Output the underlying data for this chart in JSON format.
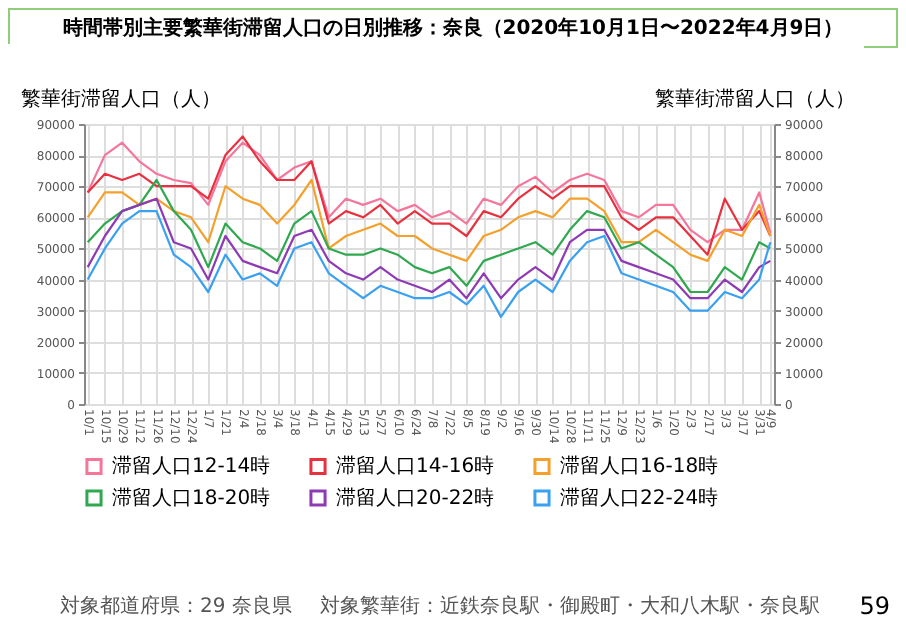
{
  "chart_data": {
    "type": "line",
    "title": "時間帯別主要繁華街滞留人口の日別推移：奈良（2020年10月1日〜2022年4月9日）",
    "ylabel": "繁華街滞留人口（人）",
    "y2label": "繁華街滞留人口（人）",
    "x": [
      "2020-10-01",
      "2020-10-15",
      "2020-10-29",
      "2020-11-12",
      "2020-11-26",
      "2020-12-10",
      "2020-12-24",
      "2021-01-07",
      "2021-01-21",
      "2021-02-04",
      "2021-02-18",
      "2021-03-04",
      "2021-03-18",
      "2021-04-01",
      "2021-04-15",
      "2021-04-29",
      "2021-05-13",
      "2021-05-27",
      "2021-06-10",
      "2021-06-24",
      "2021-07-08",
      "2021-07-22",
      "2021-08-05",
      "2021-08-19",
      "2021-09-02",
      "2021-09-16",
      "2021-09-30",
      "2021-10-14",
      "2021-10-28",
      "2021-11-11",
      "2021-11-25",
      "2021-12-09",
      "2021-12-23",
      "2022-01-06",
      "2022-01-20",
      "2022-02-03",
      "2022-02-17",
      "2022-03-03",
      "2022-03-17",
      "2022-03-31",
      "2022-04-09"
    ],
    "series": [
      {
        "name": "滞留人口12-14時",
        "color": "#f5759b",
        "values": [
          68000,
          80000,
          84000,
          78000,
          74000,
          72000,
          71000,
          64000,
          78000,
          84000,
          80000,
          72000,
          76000,
          78000,
          60000,
          66000,
          64000,
          66000,
          62000,
          64000,
          60000,
          62000,
          58000,
          66000,
          64000,
          70000,
          73000,
          68000,
          72000,
          74000,
          72000,
          62000,
          60000,
          64000,
          64000,
          56000,
          52000,
          56000,
          56000,
          68000,
          55000
        ]
      },
      {
        "name": "滞留人口14-16時",
        "color": "#e8303f",
        "values": [
          68000,
          74000,
          72000,
          74000,
          70000,
          70000,
          70000,
          66000,
          80000,
          86000,
          78000,
          72000,
          72000,
          78000,
          58000,
          62000,
          60000,
          64000,
          58000,
          62000,
          58000,
          58000,
          54000,
          62000,
          60000,
          66000,
          70000,
          66000,
          70000,
          70000,
          70000,
          60000,
          56000,
          60000,
          60000,
          54000,
          48000,
          66000,
          56000,
          62000,
          54000
        ]
      },
      {
        "name": "滞留人口16-18時",
        "color": "#f5a02a",
        "values": [
          60000,
          68000,
          68000,
          64000,
          66000,
          62000,
          60000,
          52000,
          70000,
          66000,
          64000,
          58000,
          64000,
          72000,
          50000,
          54000,
          56000,
          58000,
          54000,
          54000,
          50000,
          48000,
          46000,
          54000,
          56000,
          60000,
          62000,
          60000,
          66000,
          66000,
          62000,
          52000,
          52000,
          56000,
          52000,
          48000,
          46000,
          56000,
          54000,
          64000,
          54000
        ]
      },
      {
        "name": "滞留人口18-20時",
        "color": "#2fa84f",
        "values": [
          52000,
          58000,
          62000,
          64000,
          72000,
          62000,
          56000,
          44000,
          58000,
          52000,
          50000,
          46000,
          58000,
          62000,
          50000,
          48000,
          48000,
          50000,
          48000,
          44000,
          42000,
          44000,
          38000,
          46000,
          48000,
          50000,
          52000,
          48000,
          56000,
          62000,
          60000,
          50000,
          52000,
          48000,
          44000,
          36000,
          36000,
          44000,
          40000,
          52000,
          50000
        ]
      },
      {
        "name": "滞留人口20-22時",
        "color": "#8e3ab5",
        "values": [
          44000,
          54000,
          62000,
          64000,
          66000,
          52000,
          50000,
          40000,
          54000,
          46000,
          44000,
          42000,
          54000,
          56000,
          46000,
          42000,
          40000,
          44000,
          40000,
          38000,
          36000,
          40000,
          34000,
          42000,
          34000,
          40000,
          44000,
          40000,
          52000,
          56000,
          56000,
          46000,
          44000,
          42000,
          40000,
          34000,
          34000,
          40000,
          36000,
          44000,
          46000
        ]
      },
      {
        "name": "滞留人口22-24時",
        "color": "#3aa0f0",
        "values": [
          40000,
          50000,
          58000,
          62000,
          62000,
          48000,
          44000,
          36000,
          48000,
          40000,
          42000,
          38000,
          50000,
          52000,
          42000,
          38000,
          34000,
          38000,
          36000,
          34000,
          34000,
          36000,
          32000,
          38000,
          28000,
          36000,
          40000,
          36000,
          46000,
          52000,
          54000,
          42000,
          40000,
          38000,
          36000,
          30000,
          30000,
          36000,
          34000,
          40000,
          52000
        ]
      }
    ],
    "xlim": [
      "2020-09-28",
      "2022-04-12"
    ],
    "xticks": [
      {
        "value": "2020-10-01",
        "label": "10/1"
      },
      {
        "value": "2020-10-15",
        "label": "10/15"
      },
      {
        "value": "2020-10-29",
        "label": "10/29"
      },
      {
        "value": "2020-11-12",
        "label": "11/12"
      },
      {
        "value": "2020-11-26",
        "label": "11/26"
      },
      {
        "value": "2020-12-10",
        "label": "12/10"
      },
      {
        "value": "2020-12-24",
        "label": "12/24"
      },
      {
        "value": "2021-01-07",
        "label": "1/7"
      },
      {
        "value": "2021-01-21",
        "label": "1/21"
      },
      {
        "value": "2021-02-04",
        "label": "2/4"
      },
      {
        "value": "2021-02-18",
        "label": "2/18"
      },
      {
        "value": "2021-03-04",
        "label": "3/4"
      },
      {
        "value": "2021-03-18",
        "label": "3/18"
      },
      {
        "value": "2021-04-01",
        "label": "4/1"
      },
      {
        "value": "2021-04-15",
        "label": "4/15"
      },
      {
        "value": "2021-04-29",
        "label": "4/29"
      },
      {
        "value": "2021-05-13",
        "label": "5/13"
      },
      {
        "value": "2021-05-27",
        "label": "5/27"
      },
      {
        "value": "2021-06-10",
        "label": "6/10"
      },
      {
        "value": "2021-06-24",
        "label": "6/24"
      },
      {
        "value": "2021-07-08",
        "label": "7/8"
      },
      {
        "value": "2021-07-22",
        "label": "7/22"
      },
      {
        "value": "2021-08-05",
        "label": "8/5"
      },
      {
        "value": "2021-08-19",
        "label": "8/19"
      },
      {
        "value": "2021-09-02",
        "label": "9/2"
      },
      {
        "value": "2021-09-16",
        "label": "9/16"
      },
      {
        "value": "2021-09-30",
        "label": "9/30"
      },
      {
        "value": "2021-10-14",
        "label": "10/14"
      },
      {
        "value": "2021-10-28",
        "label": "10/28"
      },
      {
        "value": "2021-11-11",
        "label": "11/11"
      },
      {
        "value": "2021-11-25",
        "label": "11/25"
      },
      {
        "value": "2021-12-09",
        "label": "12/9"
      },
      {
        "value": "2021-12-23",
        "label": "12/23"
      },
      {
        "value": "2022-01-06",
        "label": "1/6"
      },
      {
        "value": "2022-01-20",
        "label": "1/20"
      },
      {
        "value": "2022-02-03",
        "label": "2/3"
      },
      {
        "value": "2022-02-17",
        "label": "2/17"
      },
      {
        "value": "2022-03-03",
        "label": "3/3"
      },
      {
        "value": "2022-03-17",
        "label": "3/17"
      },
      {
        "value": "2022-03-31",
        "label": "3/31"
      },
      {
        "value": "2022-04-09",
        "label": "4/9"
      }
    ],
    "ylim": [
      0,
      90000
    ],
    "yticks": [
      0,
      10000,
      20000,
      30000,
      40000,
      50000,
      60000,
      70000,
      80000,
      90000
    ],
    "y2lim": [
      0,
      90000
    ],
    "y2ticks": [
      0,
      10000,
      20000,
      30000,
      40000,
      50000,
      60000,
      70000,
      80000,
      90000
    ],
    "grid": true,
    "legend": "bottom",
    "line_style": "solid",
    "annotations": [
      "対象都道府県：29 奈良県",
      "対象繁華街：近鉄奈良駅・御殿町・大和八木駅・奈良駅",
      "59"
    ]
  }
}
